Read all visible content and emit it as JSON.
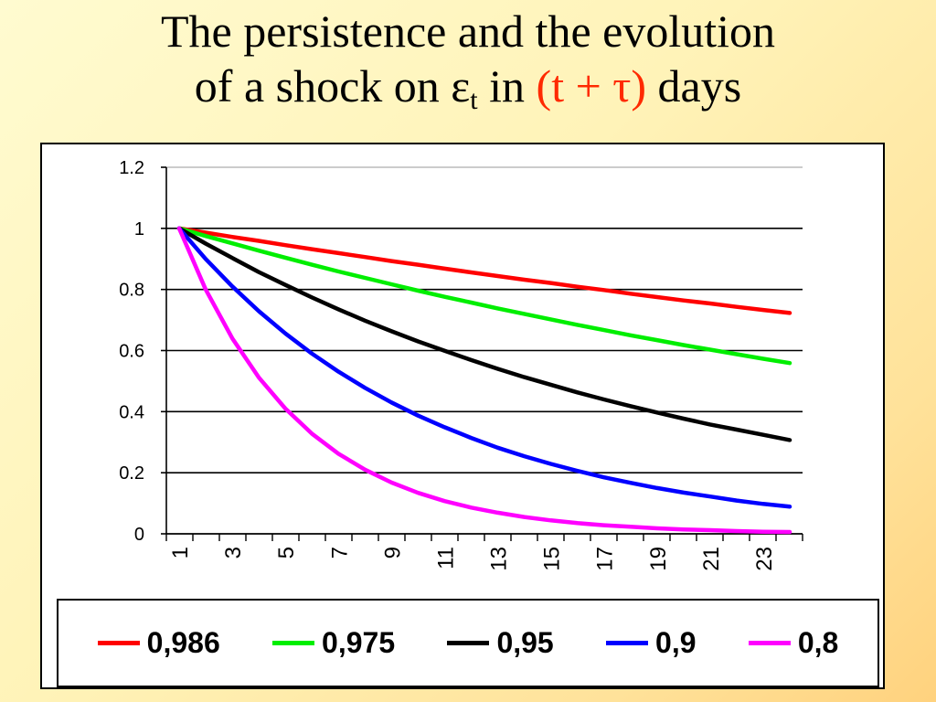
{
  "title": {
    "line1": "The persistence and the evolution",
    "line2_prefix": "of a shock on ",
    "epsilon": "ε",
    "subscript": "t",
    "line2_mid": " in ",
    "line2_red": "(t + τ)",
    "line2_suffix": " days"
  },
  "chart_data": {
    "type": "line",
    "x": [
      1,
      2,
      3,
      4,
      5,
      6,
      7,
      8,
      9,
      10,
      11,
      12,
      13,
      14,
      15,
      16,
      17,
      18,
      19,
      20,
      21,
      22,
      23,
      24
    ],
    "x_tick_labels": [
      "1",
      "3",
      "5",
      "7",
      "9",
      "11",
      "13",
      "15",
      "17",
      "19",
      "21",
      "23"
    ],
    "y_tick_labels": [
      "0",
      "0.2",
      "0.4",
      "0.6",
      "0.8",
      "1",
      "1.2"
    ],
    "ylim": [
      0,
      1.2
    ],
    "grid": "horizontal",
    "legend_position": "bottom",
    "series": [
      {
        "name": "0,986",
        "color": "#ff0000",
        "values": [
          1,
          0.986,
          0.972,
          0.959,
          0.945,
          0.932,
          0.919,
          0.906,
          0.893,
          0.881,
          0.868,
          0.856,
          0.844,
          0.832,
          0.821,
          0.809,
          0.798,
          0.786,
          0.775,
          0.764,
          0.754,
          0.743,
          0.733,
          0.723
        ]
      },
      {
        "name": "0,975",
        "color": "#00ee00",
        "values": [
          1,
          0.975,
          0.951,
          0.927,
          0.904,
          0.881,
          0.859,
          0.838,
          0.817,
          0.796,
          0.776,
          0.757,
          0.738,
          0.72,
          0.702,
          0.684,
          0.667,
          0.65,
          0.634,
          0.618,
          0.603,
          0.588,
          0.573,
          0.559
        ]
      },
      {
        "name": "0,95",
        "color": "#000000",
        "values": [
          1,
          0.95,
          0.903,
          0.857,
          0.815,
          0.774,
          0.735,
          0.698,
          0.663,
          0.63,
          0.599,
          0.569,
          0.54,
          0.513,
          0.488,
          0.463,
          0.44,
          0.418,
          0.397,
          0.377,
          0.358,
          0.341,
          0.324,
          0.307
        ]
      },
      {
        "name": "0,9",
        "color": "#0000ff",
        "values": [
          1,
          0.9,
          0.81,
          0.729,
          0.656,
          0.59,
          0.531,
          0.478,
          0.43,
          0.387,
          0.349,
          0.314,
          0.282,
          0.254,
          0.229,
          0.206,
          0.185,
          0.167,
          0.15,
          0.135,
          0.122,
          0.109,
          0.098,
          0.089
        ]
      },
      {
        "name": "0,8",
        "color": "#ff00ff",
        "values": [
          1,
          0.8,
          0.64,
          0.512,
          0.41,
          0.328,
          0.262,
          0.21,
          0.168,
          0.134,
          0.107,
          0.086,
          0.069,
          0.055,
          0.044,
          0.035,
          0.028,
          0.023,
          0.018,
          0.014,
          0.012,
          0.009,
          0.007,
          0.006
        ]
      }
    ]
  }
}
